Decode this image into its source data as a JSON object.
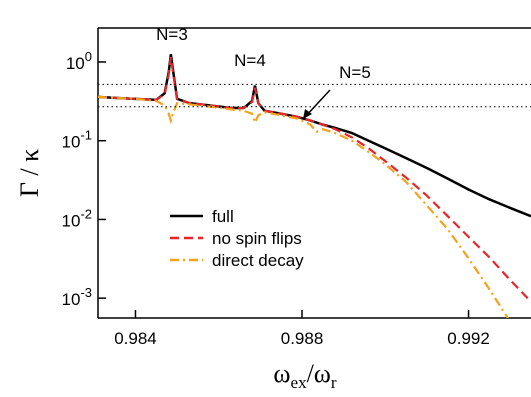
{
  "chart_data": {
    "type": "line",
    "ylabel": "Γ / κ",
    "xlabel": [
      "ω",
      "ex",
      "/ω",
      "r"
    ],
    "log_y": true,
    "xlim": [
      0.9831,
      0.9935
    ],
    "ylim": [
      0.00056,
      2.7
    ],
    "xticks": [
      0.984,
      0.988,
      0.992
    ],
    "yticks": [
      {
        "value": 1,
        "label": "10",
        "exponent": "0"
      },
      {
        "value": 0.1,
        "label": "10",
        "exponent": "-1"
      },
      {
        "value": 0.01,
        "label": "10",
        "exponent": "-2"
      },
      {
        "value": 0.001,
        "label": "10",
        "exponent": "-3"
      }
    ],
    "hlines": [
      0.52,
      0.27
    ],
    "annotations": [
      "N=3",
      "N=4",
      "N=5"
    ],
    "legend": "lower left",
    "x": [
      0.9831,
      0.9835,
      0.984,
      0.9845,
      0.9847,
      0.9848,
      0.98485,
      0.9849,
      0.985,
      0.9853,
      0.9858,
      0.9863,
      0.9866,
      0.9868,
      0.98687,
      0.98695,
      0.9871,
      0.9875,
      0.9879,
      0.9882,
      0.98835,
      0.9885,
      0.9888,
      0.9892,
      0.9896,
      0.99,
      0.9905,
      0.991,
      0.9915,
      0.992,
      0.9925,
      0.993,
      0.9935
    ],
    "series": [
      {
        "name": "full",
        "color": "#000000",
        "dash": "solid",
        "values": [
          0.36,
          0.35,
          0.34,
          0.33,
          0.4,
          0.75,
          1.25,
          0.8,
          0.34,
          0.3,
          0.28,
          0.26,
          0.26,
          0.32,
          0.5,
          0.3,
          0.24,
          0.22,
          0.2,
          0.18,
          0.17,
          0.16,
          0.145,
          0.125,
          0.1,
          0.08,
          0.06,
          0.045,
          0.033,
          0.024,
          0.018,
          0.014,
          0.011
        ]
      },
      {
        "name": "no spin flips",
        "color": "#e8262a",
        "dash": "dashed",
        "values": [
          0.36,
          0.35,
          0.34,
          0.33,
          0.39,
          0.7,
          1.15,
          0.75,
          0.34,
          0.3,
          0.28,
          0.26,
          0.26,
          0.31,
          0.47,
          0.3,
          0.24,
          0.22,
          0.2,
          0.18,
          0.17,
          0.16,
          0.14,
          0.11,
          0.08,
          0.055,
          0.034,
          0.02,
          0.011,
          0.006,
          0.0033,
          0.0017,
          0.0009
        ]
      },
      {
        "name": "direct decay",
        "color": "#f5a21b",
        "dash": "dashdot",
        "values": [
          0.36,
          0.35,
          0.34,
          0.32,
          0.28,
          0.22,
          0.18,
          0.22,
          0.3,
          0.29,
          0.27,
          0.25,
          0.24,
          0.22,
          0.17,
          0.21,
          0.23,
          0.21,
          0.19,
          0.16,
          0.13,
          0.14,
          0.125,
          0.1,
          0.072,
          0.05,
          0.03,
          0.015,
          0.0075,
          0.0032,
          0.0013,
          0.0005,
          0.0002
        ]
      }
    ]
  }
}
